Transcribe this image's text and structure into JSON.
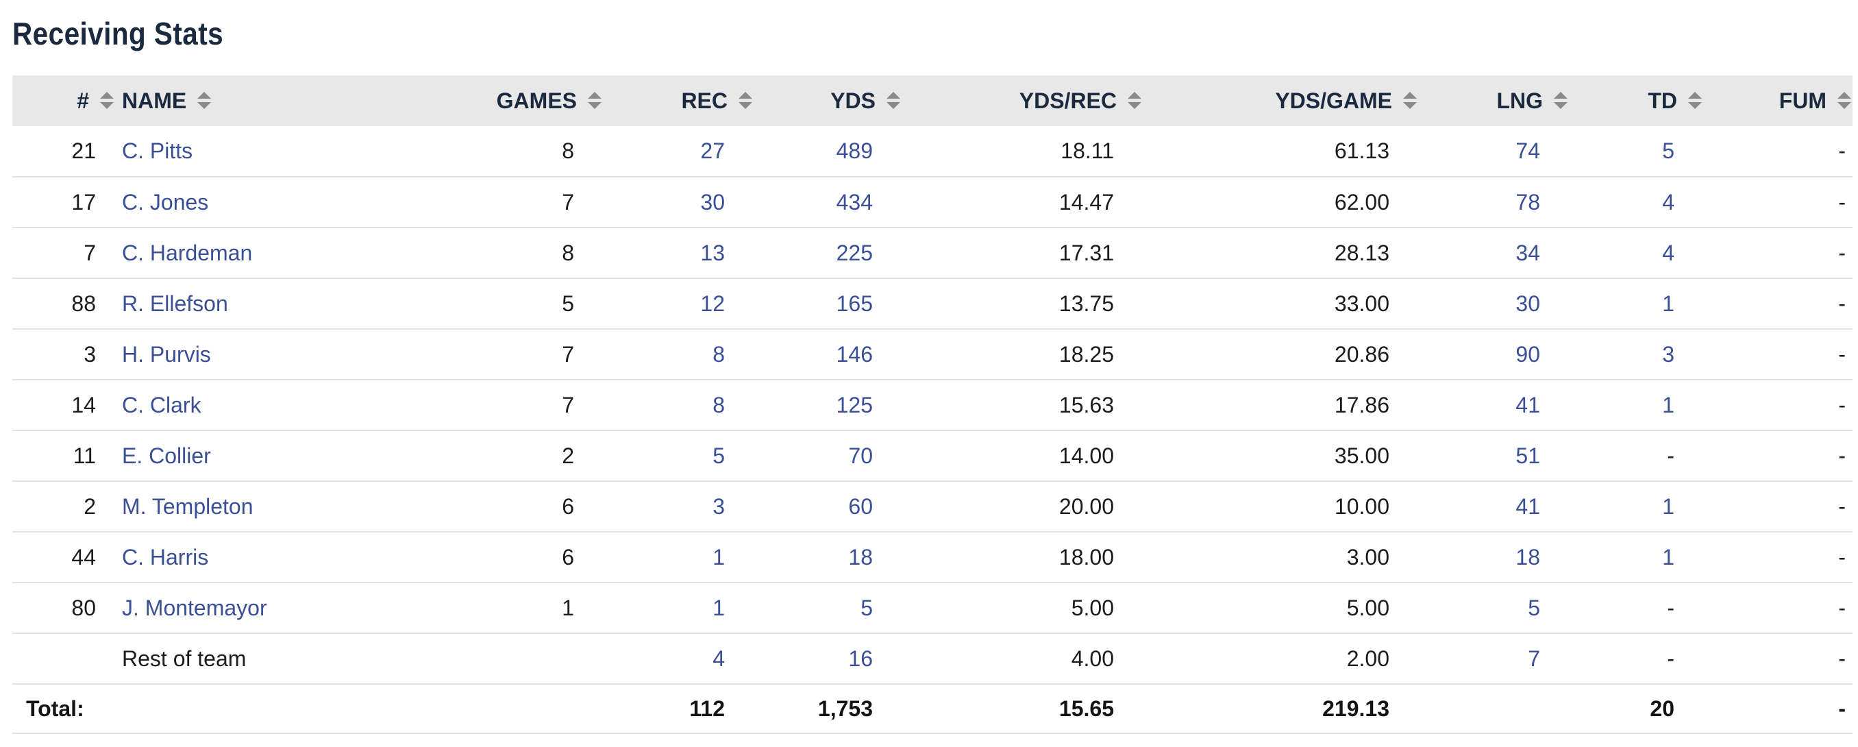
{
  "page": {
    "title": "Receiving Stats"
  },
  "table": {
    "columns": [
      {
        "key": "num",
        "label": "#"
      },
      {
        "key": "name",
        "label": "NAME"
      },
      {
        "key": "games",
        "label": "GAMES"
      },
      {
        "key": "rec",
        "label": "REC"
      },
      {
        "key": "yds",
        "label": "YDS"
      },
      {
        "key": "yds_rec",
        "label": "YDS/REC"
      },
      {
        "key": "yds_game",
        "label": "YDS/GAME"
      },
      {
        "key": "lng",
        "label": "LNG"
      },
      {
        "key": "td",
        "label": "TD"
      },
      {
        "key": "fum",
        "label": "FUM"
      }
    ],
    "rows": [
      {
        "num": "21",
        "name": "C. Pitts",
        "games": "8",
        "rec": "27",
        "yds": "489",
        "yds_rec": "18.11",
        "yds_game": "61.13",
        "lng": "74",
        "td": "5",
        "fum": "-"
      },
      {
        "num": "17",
        "name": "C. Jones",
        "games": "7",
        "rec": "30",
        "yds": "434",
        "yds_rec": "14.47",
        "yds_game": "62.00",
        "lng": "78",
        "td": "4",
        "fum": "-"
      },
      {
        "num": "7",
        "name": "C. Hardeman",
        "games": "8",
        "rec": "13",
        "yds": "225",
        "yds_rec": "17.31",
        "yds_game": "28.13",
        "lng": "34",
        "td": "4",
        "fum": "-"
      },
      {
        "num": "88",
        "name": "R. Ellefson",
        "games": "5",
        "rec": "12",
        "yds": "165",
        "yds_rec": "13.75",
        "yds_game": "33.00",
        "lng": "30",
        "td": "1",
        "fum": "-"
      },
      {
        "num": "3",
        "name": "H. Purvis",
        "games": "7",
        "rec": "8",
        "yds": "146",
        "yds_rec": "18.25",
        "yds_game": "20.86",
        "lng": "90",
        "td": "3",
        "fum": "-"
      },
      {
        "num": "14",
        "name": "C. Clark",
        "games": "7",
        "rec": "8",
        "yds": "125",
        "yds_rec": "15.63",
        "yds_game": "17.86",
        "lng": "41",
        "td": "1",
        "fum": "-"
      },
      {
        "num": "11",
        "name": "E. Collier",
        "games": "2",
        "rec": "5",
        "yds": "70",
        "yds_rec": "14.00",
        "yds_game": "35.00",
        "lng": "51",
        "td": "-",
        "fum": "-"
      },
      {
        "num": "2",
        "name": "M. Templeton",
        "games": "6",
        "rec": "3",
        "yds": "60",
        "yds_rec": "20.00",
        "yds_game": "10.00",
        "lng": "41",
        "td": "1",
        "fum": "-"
      },
      {
        "num": "44",
        "name": "C. Harris",
        "games": "6",
        "rec": "1",
        "yds": "18",
        "yds_rec": "18.00",
        "yds_game": "3.00",
        "lng": "18",
        "td": "1",
        "fum": "-"
      },
      {
        "num": "80",
        "name": "J. Montemayor",
        "games": "1",
        "rec": "1",
        "yds": "5",
        "yds_rec": "5.00",
        "yds_game": "5.00",
        "lng": "5",
        "td": "-",
        "fum": "-"
      },
      {
        "num": "",
        "name": "Rest of team",
        "games": "",
        "rec": "4",
        "yds": "16",
        "yds_rec": "4.00",
        "yds_game": "2.00",
        "lng": "7",
        "td": "-",
        "fum": "-"
      }
    ],
    "totals": {
      "label": "Total:",
      "rec": "112",
      "yds": "1,753",
      "yds_rec": "15.65",
      "yds_game": "219.13",
      "td": "20",
      "fum": "-"
    }
  },
  "colors": {
    "header_bg": "#e8e8e8",
    "link": "#3a4f96",
    "title": "#1b2a3f",
    "row_border": "#e3e3e3",
    "sort_icon": "#8a8a8a"
  },
  "icons": {
    "sort": "sort-arrows-icon"
  }
}
